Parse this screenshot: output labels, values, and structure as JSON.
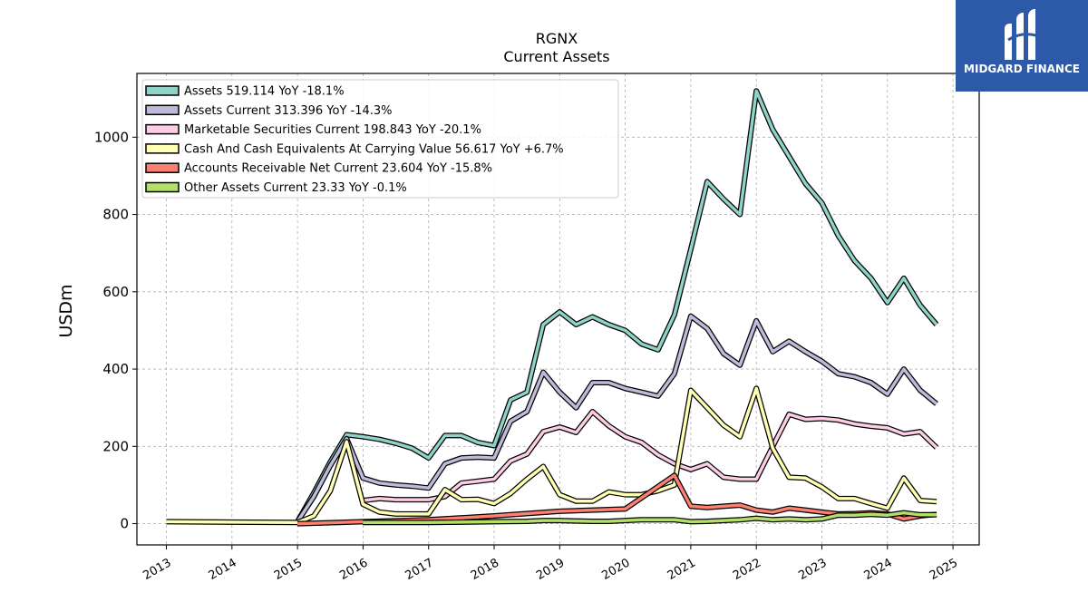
{
  "brand": {
    "name": "MIDGARD FINANCE",
    "icon": "midgard-logo-icon"
  },
  "chart_data": {
    "type": "line",
    "title": "RGNX",
    "subtitle": "Current  Assets",
    "xlabel": "",
    "ylabel": "USDm",
    "xlim": [
      2012.55,
      2025.4
    ],
    "ylim": [
      -55,
      1165
    ],
    "yticks": [
      0,
      200,
      400,
      600,
      800,
      1000
    ],
    "xticks": [
      2013,
      2014,
      2015,
      2016,
      2017,
      2018,
      2019,
      2020,
      2021,
      2022,
      2023,
      2024,
      2025
    ],
    "grid": true,
    "legend_position": "top-left",
    "series": [
      {
        "name": "Assets  519.114 YoY -18.1%",
        "color": "#8dd3c7",
        "x": [
          2015.0,
          2015.25,
          2015.5,
          2015.75,
          2016.0,
          2016.25,
          2016.5,
          2016.75,
          2017.0,
          2017.25,
          2017.5,
          2017.75,
          2018.0,
          2018.25,
          2018.5,
          2018.75,
          2019.0,
          2019.25,
          2019.5,
          2019.75,
          2020.0,
          2020.25,
          2020.5,
          2020.75,
          2021.0,
          2021.25,
          2021.5,
          2021.75,
          2022.0,
          2022.25,
          2022.5,
          2022.75,
          2023.0,
          2023.25,
          2023.5,
          2023.75,
          2024.0,
          2024.25,
          2024.5,
          2024.75
        ],
        "y": [
          5,
          80,
          160,
          230,
          225,
          218,
          208,
          195,
          170,
          228,
          228,
          210,
          202,
          320,
          340,
          515,
          548,
          515,
          535,
          515,
          500,
          465,
          450,
          540,
          710,
          885,
          840,
          800,
          1120,
          1020,
          950,
          880,
          830,
          745,
          680,
          635,
          572,
          635,
          565,
          515
        ]
      },
      {
        "name": "Assets Current  313.396 YoY -14.3%",
        "color": "#bebada",
        "x": [
          2015.0,
          2015.25,
          2015.5,
          2015.75,
          2016.0,
          2016.25,
          2016.5,
          2016.75,
          2017.0,
          2017.25,
          2017.5,
          2017.75,
          2018.0,
          2018.25,
          2018.5,
          2018.75,
          2019.0,
          2019.25,
          2019.5,
          2019.75,
          2020.0,
          2020.25,
          2020.5,
          2020.75,
          2021.0,
          2021.25,
          2021.5,
          2021.75,
          2022.0,
          2022.25,
          2022.5,
          2022.75,
          2023.0,
          2023.25,
          2023.5,
          2023.75,
          2024.0,
          2024.25,
          2024.5,
          2024.75
        ],
        "y": [
          5,
          70,
          150,
          220,
          118,
          105,
          100,
          97,
          92,
          155,
          170,
          172,
          170,
          265,
          290,
          392,
          340,
          300,
          365,
          365,
          350,
          340,
          330,
          388,
          537,
          505,
          440,
          410,
          525,
          445,
          472,
          445,
          420,
          388,
          380,
          365,
          335,
          400,
          345,
          310
        ]
      },
      {
        "name": "Marketable Securities Current  198.843 YoY -20.1%",
        "color": "#fccde5",
        "x": [
          2016.0,
          2016.25,
          2016.5,
          2016.75,
          2017.0,
          2017.25,
          2017.5,
          2017.75,
          2018.0,
          2018.25,
          2018.5,
          2018.75,
          2019.0,
          2019.25,
          2019.5,
          2019.75,
          2020.0,
          2020.25,
          2020.5,
          2020.75,
          2021.0,
          2021.25,
          2021.5,
          2021.75,
          2022.0,
          2022.25,
          2022.5,
          2022.75,
          2023.0,
          2023.25,
          2023.5,
          2023.75,
          2024.0,
          2024.25,
          2024.5,
          2024.75
        ],
        "y": [
          60,
          65,
          62,
          62,
          62,
          70,
          105,
          110,
          115,
          162,
          180,
          238,
          250,
          236,
          290,
          253,
          225,
          210,
          178,
          155,
          140,
          155,
          120,
          115,
          115,
          200,
          283,
          270,
          272,
          268,
          258,
          252,
          248,
          232,
          238,
          197
        ]
      },
      {
        "name": "Cash And Cash Equivalents At Carrying Value  56.617 YoY +6.7%",
        "color": "#ffffb3",
        "x": [
          2013.0,
          2015.0,
          2015.25,
          2015.5,
          2015.75,
          2016.0,
          2016.25,
          2016.5,
          2016.75,
          2017.0,
          2017.25,
          2017.5,
          2017.75,
          2018.0,
          2018.25,
          2018.5,
          2018.75,
          2019.0,
          2019.25,
          2019.5,
          2019.75,
          2020.0,
          2020.25,
          2020.5,
          2020.75,
          2021.0,
          2021.25,
          2021.5,
          2021.75,
          2022.0,
          2022.25,
          2022.5,
          2022.75,
          2023.0,
          2023.25,
          2023.5,
          2023.75,
          2024.0,
          2024.25,
          2024.5,
          2024.75
        ],
        "y": [
          5,
          3,
          20,
          85,
          212,
          50,
          30,
          25,
          25,
          25,
          88,
          62,
          63,
          52,
          78,
          115,
          148,
          75,
          58,
          58,
          82,
          75,
          75,
          85,
          100,
          345,
          300,
          255,
          225,
          350,
          195,
          120,
          118,
          95,
          65,
          65,
          52,
          40,
          118,
          60,
          57
        ]
      },
      {
        "name": "Accounts Receivable Net Current  23.604 YoY -15.8%",
        "color": "#fb8072",
        "x": [
          2015.0,
          2016.0,
          2017.0,
          2018.0,
          2019.0,
          2020.0,
          2020.75,
          2021.0,
          2021.25,
          2021.5,
          2021.75,
          2022.0,
          2022.25,
          2022.5,
          2022.75,
          2023.0,
          2023.25,
          2023.5,
          2023.75,
          2024.0,
          2024.25,
          2024.5,
          2024.75
        ],
        "y": [
          0,
          5,
          10,
          20,
          32,
          38,
          125,
          45,
          42,
          45,
          48,
          35,
          30,
          40,
          35,
          30,
          25,
          26,
          28,
          25,
          12,
          20,
          24
        ]
      },
      {
        "name": "Other Assets Current  23.33 YoY -0.1%",
        "color": "#b3de69",
        "x": [
          2016.0,
          2016.5,
          2017.0,
          2017.5,
          2018.0,
          2018.5,
          2018.75,
          2019.0,
          2019.25,
          2019.5,
          2019.75,
          2020.0,
          2020.25,
          2020.5,
          2020.75,
          2021.0,
          2021.25,
          2021.5,
          2021.75,
          2022.0,
          2022.25,
          2022.5,
          2022.75,
          2023.0,
          2023.25,
          2023.5,
          2023.75,
          2024.0,
          2024.25,
          2024.5,
          2024.75
        ],
        "y": [
          3,
          3,
          3,
          4,
          5,
          6,
          8,
          8,
          7,
          6,
          6,
          8,
          10,
          10,
          10,
          5,
          6,
          8,
          10,
          14,
          10,
          12,
          10,
          12,
          22,
          22,
          24,
          22,
          28,
          23,
          23
        ]
      }
    ]
  }
}
